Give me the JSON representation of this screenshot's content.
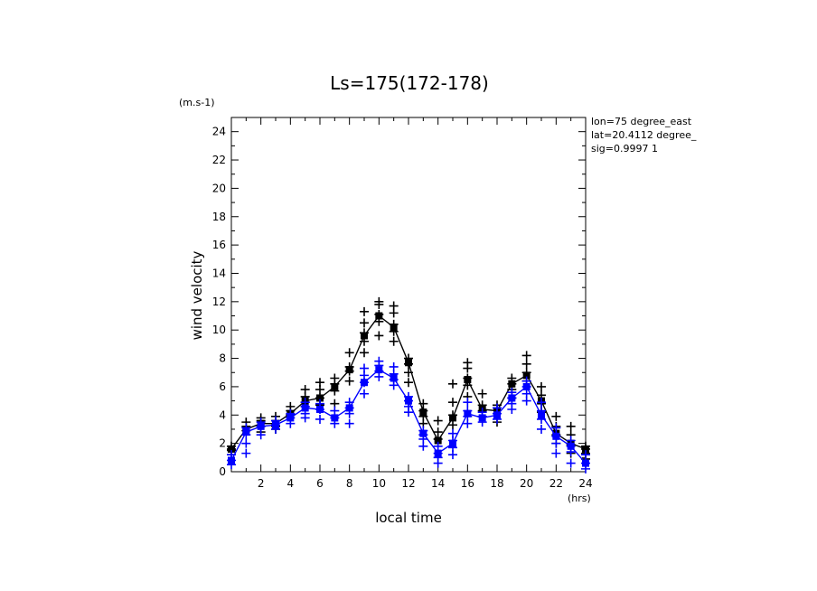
{
  "chart_data": {
    "type": "line",
    "title": "Ls=175(172-178)",
    "xlabel": "local time",
    "ylabel": "wind velocity",
    "x_unit": "(hrs)",
    "y_unit": "(m.s-1)",
    "annotations": [
      "lon=75 degree_east",
      "lat=20.4112 degree_",
      "sig=0.9997 1"
    ],
    "xlim": [
      0,
      24
    ],
    "ylim": [
      0,
      25
    ],
    "xticks": [
      2,
      4,
      6,
      8,
      10,
      12,
      14,
      16,
      18,
      20,
      22,
      24
    ],
    "yticks": [
      0,
      2,
      4,
      6,
      8,
      10,
      12,
      14,
      16,
      18,
      20,
      22,
      24
    ],
    "grid": false,
    "x": [
      0,
      1,
      2,
      3,
      4,
      5,
      6,
      7,
      8,
      9,
      10,
      11,
      12,
      13,
      14,
      15,
      16,
      17,
      18,
      19,
      20,
      21,
      22,
      23,
      24
    ],
    "series": [
      {
        "color": "#000000",
        "values": [
          1.6,
          3.0,
          3.4,
          3.4,
          4.1,
          5.0,
          5.2,
          6.0,
          7.2,
          9.6,
          11.0,
          10.2,
          7.7,
          4.2,
          2.2,
          3.8,
          6.5,
          4.4,
          4.3,
          6.2,
          6.8,
          5.0,
          2.7,
          2.0,
          1.6
        ],
        "scatter": [
          [
            1.8,
            1.6,
            1.5,
            1.2
          ],
          [
            3.5,
            3.2,
            2.9
          ],
          [
            3.8,
            3.6,
            3.2,
            2.8
          ],
          [
            3.9,
            3.6,
            3.2,
            3.0
          ],
          [
            4.6,
            4.3,
            4.0
          ],
          [
            5.8,
            5.3,
            4.9,
            4.6
          ],
          [
            6.3,
            5.8,
            5.2,
            4.7
          ],
          [
            6.6,
            6.2,
            5.7,
            4.8
          ],
          [
            8.4,
            7.4,
            7.1,
            6.4
          ],
          [
            11.3,
            10.5,
            9.8,
            9.2,
            8.4
          ],
          [
            12.0,
            11.8,
            11.1,
            10.6,
            9.6
          ],
          [
            11.7,
            11.2,
            10.4,
            9.9,
            9.2
          ],
          [
            8.0,
            7.6,
            7.0,
            6.3
          ],
          [
            4.8,
            4.3,
            3.9,
            3.4
          ],
          [
            3.6,
            2.8,
            2.3
          ],
          [
            6.2,
            4.9,
            4.0,
            3.3
          ],
          [
            7.7,
            7.3,
            6.6,
            6.1,
            5.3
          ],
          [
            5.5,
            4.7,
            4.3,
            3.9
          ],
          [
            4.7,
            4.1,
            3.5
          ],
          [
            6.6,
            6.2,
            5.8,
            5.2
          ],
          [
            8.2,
            7.6,
            7.0,
            6.4
          ],
          [
            6.0,
            5.4,
            4.8,
            4.2
          ],
          [
            3.9,
            3.2,
            2.6,
            2.0
          ],
          [
            3.2,
            2.6,
            1.9,
            1.3
          ],
          [
            1.8,
            1.6,
            1.3,
            0.9
          ]
        ]
      },
      {
        "color": "#0000ff",
        "values": [
          0.8,
          2.8,
          3.2,
          3.3,
          3.8,
          4.5,
          4.4,
          3.8,
          4.5,
          6.3,
          7.2,
          6.6,
          5.0,
          2.7,
          1.3,
          2.0,
          4.1,
          3.8,
          4.0,
          5.2,
          6.0,
          4.0,
          2.5,
          1.8,
          0.6
        ],
        "scatter": [
          [
            1.2,
            0.8,
            0.5
          ],
          [
            3.1,
            2.6,
            2.0,
            1.3
          ],
          [
            3.5,
            3.2,
            2.6
          ],
          [
            3.6,
            3.3,
            3.0
          ],
          [
            4.1,
            3.8,
            3.4
          ],
          [
            4.9,
            4.6,
            4.1,
            3.8
          ],
          [
            4.8,
            4.4,
            3.7
          ],
          [
            4.3,
            3.8,
            3.4
          ],
          [
            4.9,
            4.5,
            4.1,
            3.4
          ],
          [
            7.3,
            6.8,
            6.3,
            5.5
          ],
          [
            7.8,
            7.5,
            7.1,
            6.7
          ],
          [
            7.4,
            6.9,
            6.5,
            6.1
          ],
          [
            5.3,
            5.0,
            4.6,
            4.2
          ],
          [
            2.9,
            2.6,
            2.3,
            1.8
          ],
          [
            1.8,
            1.3,
            1.0,
            0.6
          ],
          [
            2.7,
            2.2,
            1.7,
            1.2
          ],
          [
            4.9,
            4.3,
            3.9,
            3.4
          ],
          [
            4.2,
            3.9,
            3.5
          ],
          [
            4.5,
            4.1,
            3.7
          ],
          [
            5.6,
            5.2,
            4.8,
            4.4
          ],
          [
            6.4,
            6.0,
            5.5,
            5.0
          ],
          [
            4.9,
            4.3,
            3.7,
            3.0
          ],
          [
            3.1,
            2.5,
            2.0,
            1.3
          ],
          [
            2.2,
            1.8,
            1.4,
            0.6
          ],
          [
            1.2,
            0.6,
            0.2
          ]
        ]
      }
    ]
  }
}
